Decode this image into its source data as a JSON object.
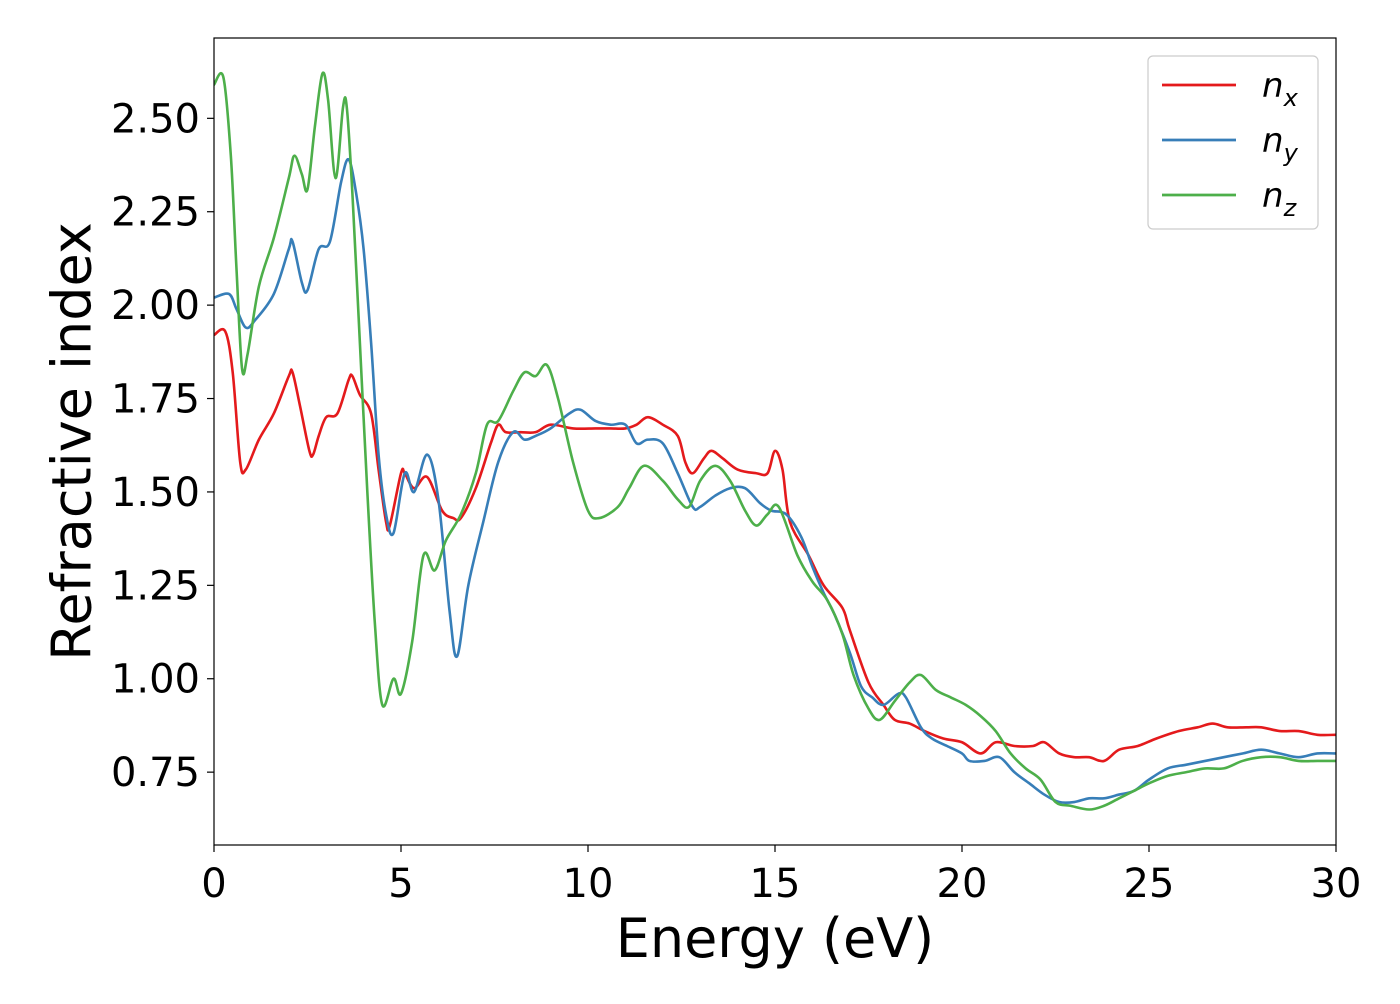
{
  "chart_data": {
    "type": "line",
    "title": "",
    "xlabel": "Energy (eV)",
    "ylabel": "Refractive index",
    "xlim": [
      0,
      30
    ],
    "ylim": [
      0.555,
      2.715
    ],
    "xticks": [
      0,
      5,
      10,
      15,
      20,
      25,
      30
    ],
    "xtick_labels": [
      "0",
      "5",
      "10",
      "15",
      "20",
      "25",
      "30"
    ],
    "yticks": [
      0.75,
      1.0,
      1.25,
      1.5,
      1.75,
      2.0,
      2.25,
      2.5
    ],
    "ytick_labels": [
      "0.75",
      "1.00",
      "1.25",
      "1.50",
      "1.75",
      "2.00",
      "2.25",
      "2.50"
    ],
    "grid": false,
    "legend_position": "top-right",
    "series": [
      {
        "name": "n_x",
        "label_main": "n",
        "label_sub": "x",
        "color": "#e41a1c",
        "points": [
          [
            0.0,
            1.92
          ],
          [
            0.3,
            1.93
          ],
          [
            0.5,
            1.82
          ],
          [
            0.7,
            1.58
          ],
          [
            0.85,
            1.56
          ],
          [
            1.2,
            1.64
          ],
          [
            1.6,
            1.71
          ],
          [
            2.0,
            1.81
          ],
          [
            2.1,
            1.82
          ],
          [
            2.3,
            1.73
          ],
          [
            2.55,
            1.61
          ],
          [
            2.65,
            1.6
          ],
          [
            2.8,
            1.65
          ],
          [
            3.0,
            1.7
          ],
          [
            3.3,
            1.71
          ],
          [
            3.6,
            1.8
          ],
          [
            3.7,
            1.81
          ],
          [
            3.9,
            1.76
          ],
          [
            4.2,
            1.71
          ],
          [
            4.4,
            1.56
          ],
          [
            4.6,
            1.42
          ],
          [
            4.7,
            1.41
          ],
          [
            5.0,
            1.55
          ],
          [
            5.1,
            1.55
          ],
          [
            5.35,
            1.51
          ],
          [
            5.7,
            1.54
          ],
          [
            6.1,
            1.45
          ],
          [
            6.4,
            1.43
          ],
          [
            6.6,
            1.43
          ],
          [
            7.0,
            1.51
          ],
          [
            7.4,
            1.63
          ],
          [
            7.6,
            1.68
          ],
          [
            7.8,
            1.66
          ],
          [
            8.2,
            1.66
          ],
          [
            8.6,
            1.66
          ],
          [
            9.0,
            1.68
          ],
          [
            9.6,
            1.67
          ],
          [
            10.2,
            1.67
          ],
          [
            10.6,
            1.67
          ],
          [
            11.0,
            1.67
          ],
          [
            11.3,
            1.68
          ],
          [
            11.6,
            1.7
          ],
          [
            12.0,
            1.68
          ],
          [
            12.4,
            1.65
          ],
          [
            12.6,
            1.58
          ],
          [
            12.8,
            1.55
          ],
          [
            13.1,
            1.59
          ],
          [
            13.3,
            1.61
          ],
          [
            13.6,
            1.59
          ],
          [
            14.0,
            1.56
          ],
          [
            14.5,
            1.55
          ],
          [
            14.8,
            1.55
          ],
          [
            15.0,
            1.61
          ],
          [
            15.2,
            1.56
          ],
          [
            15.4,
            1.42
          ],
          [
            15.9,
            1.33
          ],
          [
            16.3,
            1.25
          ],
          [
            16.8,
            1.19
          ],
          [
            17.0,
            1.13
          ],
          [
            17.5,
            0.99
          ],
          [
            17.9,
            0.93
          ],
          [
            18.2,
            0.89
          ],
          [
            18.6,
            0.88
          ],
          [
            19.0,
            0.86
          ],
          [
            19.5,
            0.84
          ],
          [
            20.0,
            0.83
          ],
          [
            20.5,
            0.8
          ],
          [
            20.9,
            0.83
          ],
          [
            21.4,
            0.82
          ],
          [
            21.9,
            0.82
          ],
          [
            22.2,
            0.83
          ],
          [
            22.6,
            0.8
          ],
          [
            23.0,
            0.79
          ],
          [
            23.4,
            0.79
          ],
          [
            23.8,
            0.78
          ],
          [
            24.2,
            0.81
          ],
          [
            24.7,
            0.82
          ],
          [
            25.2,
            0.84
          ],
          [
            25.8,
            0.86
          ],
          [
            26.3,
            0.87
          ],
          [
            26.7,
            0.88
          ],
          [
            27.1,
            0.87
          ],
          [
            27.6,
            0.87
          ],
          [
            28.0,
            0.87
          ],
          [
            28.5,
            0.86
          ],
          [
            29.0,
            0.86
          ],
          [
            29.5,
            0.85
          ],
          [
            30.0,
            0.85
          ]
        ]
      },
      {
        "name": "n_y",
        "label_main": "n",
        "label_sub": "y",
        "color": "#377eb8",
        "points": [
          [
            0.0,
            2.02
          ],
          [
            0.4,
            2.03
          ],
          [
            0.6,
            1.99
          ],
          [
            0.85,
            1.94
          ],
          [
            1.1,
            1.96
          ],
          [
            1.6,
            2.03
          ],
          [
            2.0,
            2.15
          ],
          [
            2.1,
            2.17
          ],
          [
            2.35,
            2.06
          ],
          [
            2.5,
            2.04
          ],
          [
            2.8,
            2.15
          ],
          [
            3.1,
            2.17
          ],
          [
            3.4,
            2.33
          ],
          [
            3.6,
            2.39
          ],
          [
            3.8,
            2.3
          ],
          [
            4.0,
            2.15
          ],
          [
            4.2,
            1.9
          ],
          [
            4.4,
            1.6
          ],
          [
            4.6,
            1.44
          ],
          [
            4.8,
            1.39
          ],
          [
            5.1,
            1.55
          ],
          [
            5.35,
            1.5
          ],
          [
            5.7,
            1.6
          ],
          [
            6.0,
            1.48
          ],
          [
            6.3,
            1.18
          ],
          [
            6.5,
            1.06
          ],
          [
            6.8,
            1.25
          ],
          [
            7.2,
            1.42
          ],
          [
            7.6,
            1.58
          ],
          [
            8.0,
            1.66
          ],
          [
            8.3,
            1.64
          ],
          [
            8.6,
            1.65
          ],
          [
            9.0,
            1.67
          ],
          [
            9.5,
            1.71
          ],
          [
            9.8,
            1.72
          ],
          [
            10.2,
            1.69
          ],
          [
            10.6,
            1.68
          ],
          [
            11.0,
            1.68
          ],
          [
            11.3,
            1.63
          ],
          [
            11.6,
            1.64
          ],
          [
            12.0,
            1.63
          ],
          [
            12.4,
            1.55
          ],
          [
            12.8,
            1.46
          ],
          [
            13.0,
            1.46
          ],
          [
            13.4,
            1.49
          ],
          [
            13.8,
            1.51
          ],
          [
            14.2,
            1.51
          ],
          [
            14.6,
            1.47
          ],
          [
            14.9,
            1.45
          ],
          [
            15.3,
            1.44
          ],
          [
            15.7,
            1.38
          ],
          [
            16.0,
            1.3
          ],
          [
            16.3,
            1.23
          ],
          [
            16.6,
            1.17
          ],
          [
            17.0,
            1.07
          ],
          [
            17.3,
            0.98
          ],
          [
            17.6,
            0.95
          ],
          [
            17.9,
            0.93
          ],
          [
            18.3,
            0.96
          ],
          [
            18.5,
            0.95
          ],
          [
            18.9,
            0.87
          ],
          [
            19.2,
            0.84
          ],
          [
            19.6,
            0.82
          ],
          [
            20.0,
            0.8
          ],
          [
            20.2,
            0.78
          ],
          [
            20.6,
            0.78
          ],
          [
            21.0,
            0.79
          ],
          [
            21.4,
            0.75
          ],
          [
            21.8,
            0.72
          ],
          [
            22.2,
            0.69
          ],
          [
            22.6,
            0.67
          ],
          [
            23.0,
            0.67
          ],
          [
            23.4,
            0.68
          ],
          [
            23.8,
            0.68
          ],
          [
            24.2,
            0.69
          ],
          [
            24.6,
            0.7
          ],
          [
            25.0,
            0.73
          ],
          [
            25.5,
            0.76
          ],
          [
            26.0,
            0.77
          ],
          [
            26.5,
            0.78
          ],
          [
            27.0,
            0.79
          ],
          [
            27.5,
            0.8
          ],
          [
            28.0,
            0.81
          ],
          [
            28.5,
            0.8
          ],
          [
            29.0,
            0.79
          ],
          [
            29.5,
            0.8
          ],
          [
            30.0,
            0.8
          ]
        ]
      },
      {
        "name": "n_z",
        "label_main": "n",
        "label_sub": "z",
        "color": "#4daf4a",
        "points": [
          [
            0.0,
            2.59
          ],
          [
            0.25,
            2.61
          ],
          [
            0.45,
            2.4
          ],
          [
            0.6,
            2.1
          ],
          [
            0.75,
            1.83
          ],
          [
            0.9,
            1.87
          ],
          [
            1.2,
            2.05
          ],
          [
            1.6,
            2.18
          ],
          [
            2.0,
            2.34
          ],
          [
            2.15,
            2.4
          ],
          [
            2.35,
            2.35
          ],
          [
            2.5,
            2.31
          ],
          [
            2.7,
            2.48
          ],
          [
            2.9,
            2.62
          ],
          [
            3.05,
            2.55
          ],
          [
            3.25,
            2.34
          ],
          [
            3.45,
            2.53
          ],
          [
            3.55,
            2.53
          ],
          [
            3.7,
            2.3
          ],
          [
            3.9,
            1.9
          ],
          [
            4.1,
            1.5
          ],
          [
            4.3,
            1.15
          ],
          [
            4.5,
            0.93
          ],
          [
            4.8,
            1.0
          ],
          [
            5.0,
            0.96
          ],
          [
            5.3,
            1.1
          ],
          [
            5.6,
            1.33
          ],
          [
            5.9,
            1.29
          ],
          [
            6.2,
            1.37
          ],
          [
            6.6,
            1.44
          ],
          [
            7.0,
            1.55
          ],
          [
            7.3,
            1.68
          ],
          [
            7.6,
            1.69
          ],
          [
            8.0,
            1.77
          ],
          [
            8.3,
            1.82
          ],
          [
            8.6,
            1.81
          ],
          [
            8.9,
            1.84
          ],
          [
            9.2,
            1.75
          ],
          [
            9.6,
            1.58
          ],
          [
            10.0,
            1.45
          ],
          [
            10.3,
            1.43
          ],
          [
            10.8,
            1.46
          ],
          [
            11.1,
            1.51
          ],
          [
            11.5,
            1.57
          ],
          [
            12.0,
            1.53
          ],
          [
            12.4,
            1.48
          ],
          [
            12.7,
            1.46
          ],
          [
            13.0,
            1.53
          ],
          [
            13.4,
            1.57
          ],
          [
            13.8,
            1.53
          ],
          [
            14.2,
            1.45
          ],
          [
            14.5,
            1.41
          ],
          [
            14.8,
            1.44
          ],
          [
            15.1,
            1.46
          ],
          [
            15.6,
            1.33
          ],
          [
            16.0,
            1.26
          ],
          [
            16.4,
            1.21
          ],
          [
            16.8,
            1.12
          ],
          [
            17.1,
            1.01
          ],
          [
            17.5,
            0.92
          ],
          [
            17.8,
            0.89
          ],
          [
            18.2,
            0.94
          ],
          [
            18.6,
            0.99
          ],
          [
            18.9,
            1.01
          ],
          [
            19.3,
            0.97
          ],
          [
            19.7,
            0.95
          ],
          [
            20.1,
            0.93
          ],
          [
            20.5,
            0.9
          ],
          [
            20.9,
            0.86
          ],
          [
            21.3,
            0.8
          ],
          [
            21.7,
            0.76
          ],
          [
            22.1,
            0.73
          ],
          [
            22.5,
            0.67
          ],
          [
            22.9,
            0.66
          ],
          [
            23.4,
            0.65
          ],
          [
            23.8,
            0.66
          ],
          [
            24.2,
            0.68
          ],
          [
            24.6,
            0.7
          ],
          [
            25.0,
            0.72
          ],
          [
            25.5,
            0.74
          ],
          [
            26.0,
            0.75
          ],
          [
            26.5,
            0.76
          ],
          [
            27.0,
            0.76
          ],
          [
            27.5,
            0.78
          ],
          [
            28.0,
            0.79
          ],
          [
            28.5,
            0.79
          ],
          [
            29.0,
            0.78
          ],
          [
            29.5,
            0.78
          ],
          [
            30.0,
            0.78
          ]
        ]
      }
    ]
  }
}
